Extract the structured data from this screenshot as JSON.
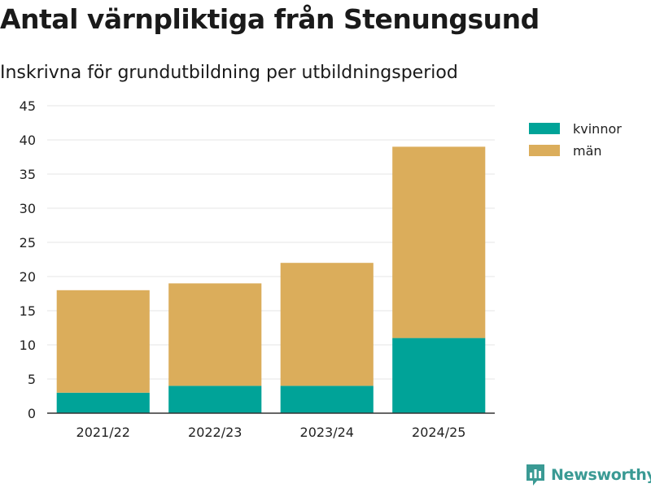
{
  "colors": {
    "kvinnor": "#00a398",
    "man": "#dbad5b",
    "grid": "#e6e6e6",
    "axis": "#333333",
    "brand": "#3a9a94"
  },
  "chart_data": {
    "type": "bar",
    "stacked": true,
    "title": "Antal värnpliktiga från Stenungsund",
    "subtitle": "Inskrivna för grundutbildning per utbildningsperiod",
    "xlabel": "",
    "ylabel": "",
    "categories": [
      "2021/22",
      "2022/23",
      "2023/24",
      "2024/25"
    ],
    "series": [
      {
        "name": "kvinnor",
        "values": [
          3,
          4,
          4,
          11
        ]
      },
      {
        "name": "män",
        "values": [
          15,
          15,
          18,
          28
        ]
      }
    ],
    "ylim": [
      0,
      45
    ],
    "yticks": [
      0,
      5,
      10,
      15,
      20,
      25,
      30,
      35,
      40,
      45
    ],
    "grid": true,
    "legend": "top-right"
  },
  "branding": {
    "name": "Newsworthy",
    "icon": "newsworthy-logo-icon"
  }
}
